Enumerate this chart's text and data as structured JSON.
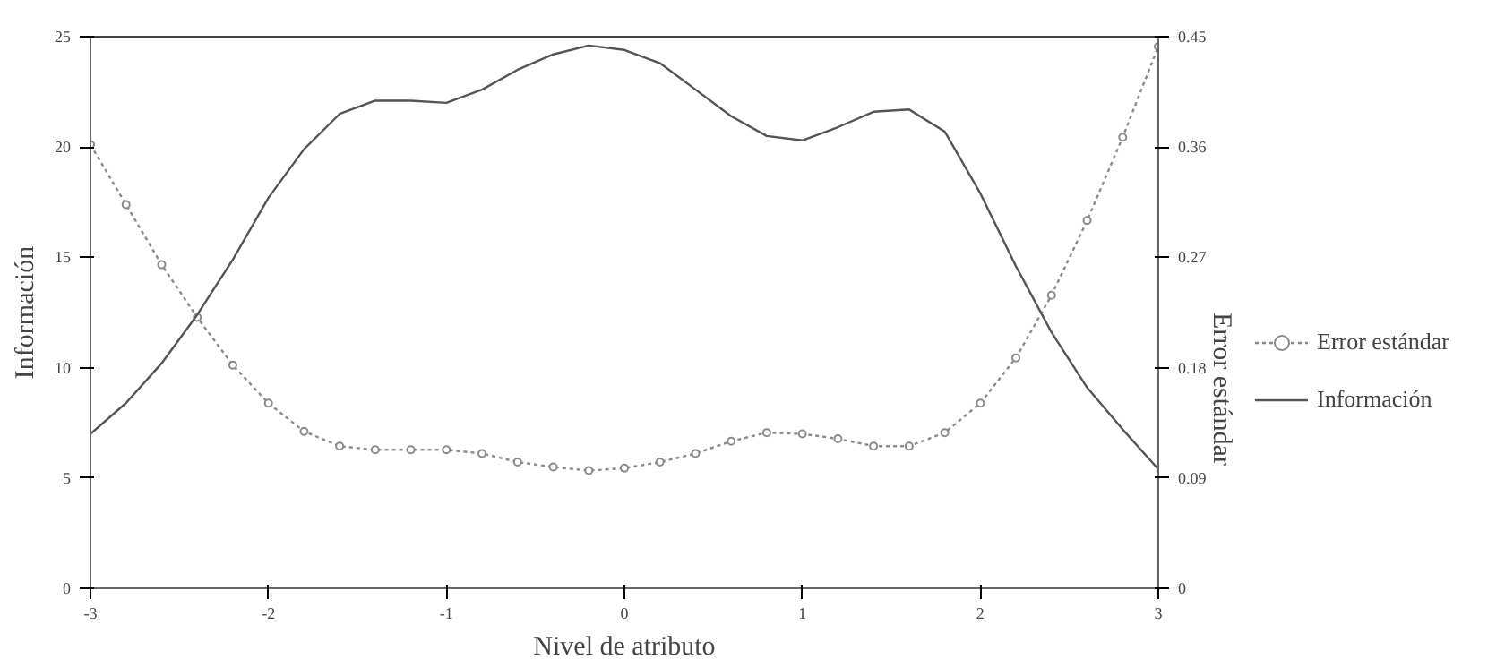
{
  "chart_data": {
    "type": "line",
    "xlabel": "Nivel de atributo",
    "ylabel": "Información",
    "y2label": "Error estándar",
    "x": [
      -3,
      -2.8,
      -2.6,
      -2.4,
      -2.2,
      -2,
      -1.8,
      -1.6,
      -1.4,
      -1.2,
      -1,
      -0.8,
      -0.6,
      -0.4,
      -0.2,
      0,
      0.2,
      0.4,
      0.6,
      0.8,
      1,
      1.2,
      1.4,
      1.6,
      1.8,
      2,
      2.2,
      2.4,
      2.6,
      2.8,
      3
    ],
    "series": [
      {
        "name": "Error estándar",
        "color": "#8a8a8a",
        "axis": "y2",
        "marker": "circle",
        "line_style": "dotted",
        "values": [
          0.362,
          0.313,
          0.264,
          0.221,
          0.182,
          0.151,
          0.128,
          0.116,
          0.113,
          0.113,
          0.113,
          0.11,
          0.103,
          0.099,
          0.096,
          0.098,
          0.103,
          0.11,
          0.12,
          0.127,
          0.126,
          0.122,
          0.116,
          0.116,
          0.127,
          0.151,
          0.188,
          0.239,
          0.3,
          0.368,
          0.442
        ]
      },
      {
        "name": "Información",
        "color": "#555555",
        "marker": "none",
        "line_style": "solid",
        "values": [
          7.0,
          8.4,
          10.2,
          12.4,
          14.9,
          17.7,
          19.9,
          21.5,
          22.1,
          22.1,
          22.0,
          22.6,
          23.5,
          24.2,
          24.6,
          24.4,
          23.8,
          22.6,
          21.4,
          20.5,
          20.3,
          20.9,
          21.6,
          21.7,
          20.7,
          17.9,
          14.6,
          11.6,
          9.1,
          7.2,
          5.4
        ]
      }
    ],
    "xlim": [
      -3,
      3
    ],
    "xticks": [
      -3,
      -2,
      -1,
      0,
      1,
      2,
      3
    ],
    "ylim": [
      0,
      25
    ],
    "yticks": [
      0,
      5,
      10,
      15,
      20,
      25
    ],
    "y2lim": [
      0,
      0.45
    ],
    "y2ticks": [
      0,
      0.09,
      0.18,
      0.27,
      0.36,
      0.45
    ],
    "grid": false,
    "legend": "right"
  }
}
